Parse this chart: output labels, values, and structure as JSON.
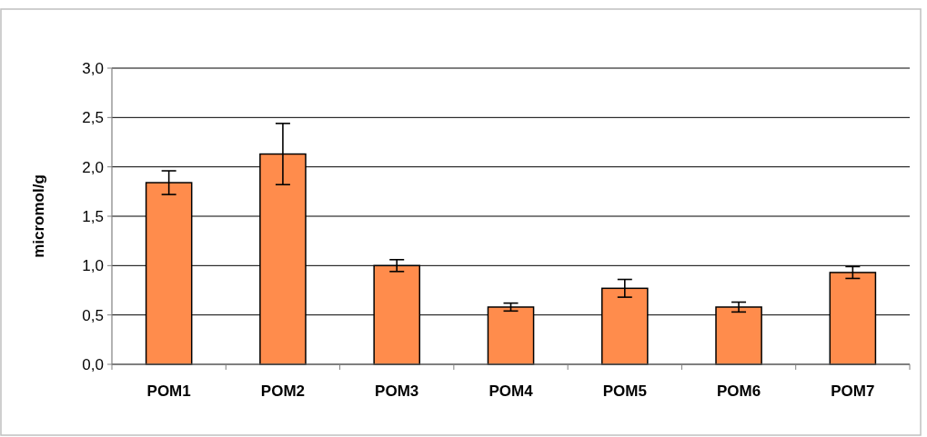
{
  "chart_data": {
    "type": "bar",
    "ylabel": "micromol/g",
    "categories": [
      "POM1",
      "POM2",
      "POM3",
      "POM4",
      "POM5",
      "POM6",
      "POM7"
    ],
    "values": [
      1.84,
      2.13,
      1.0,
      0.58,
      0.77,
      0.58,
      0.93
    ],
    "errors": [
      0.12,
      0.31,
      0.06,
      0.04,
      0.09,
      0.05,
      0.06
    ],
    "color": "#ff8c4c",
    "ylim": [
      0,
      3
    ],
    "yticks": [
      {
        "value": 0,
        "label": "0,0"
      },
      {
        "value": 0.5,
        "label": "0,5"
      },
      {
        "value": 1,
        "label": "1,0"
      },
      {
        "value": 1.5,
        "label": "1,5"
      },
      {
        "value": 2,
        "label": "2,0"
      },
      {
        "value": 2.5,
        "label": "2,5"
      },
      {
        "value": 3,
        "label": "3,0"
      }
    ],
    "grid": "y"
  }
}
